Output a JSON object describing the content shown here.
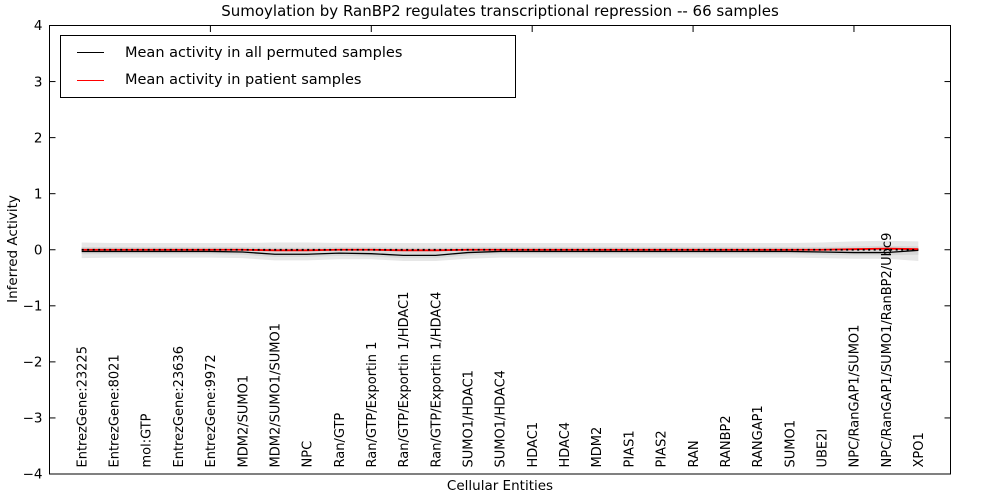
{
  "title": "Sumoylation by RanBP2 regulates transcriptional repression -- 66 samples",
  "legend": {
    "items": [
      {
        "label": "Mean activity in all permuted samples",
        "color": "#000000"
      },
      {
        "label": "Mean activity in patient samples",
        "color": "#ff0000"
      }
    ]
  },
  "chart_data": {
    "type": "line",
    "title": "Sumoylation by RanBP2 regulates transcriptional repression -- 66 samples",
    "xlabel": "Cellular Entities",
    "ylabel": "Inferred Activity",
    "ylim": [
      -4,
      4
    ],
    "xlim": [
      0,
      28
    ],
    "yticks": [
      -4,
      -3,
      -2,
      -1,
      0,
      1,
      2,
      3,
      4
    ],
    "xticks_top": [
      5,
      10,
      15,
      20,
      25
    ],
    "grid": false,
    "legend_position": "upper left",
    "categories": [
      "EntrezGene:23225",
      "EntrezGene:8021",
      "mol:GTP",
      "EntrezGene:23636",
      "EntrezGene:9972",
      "MDM2/SUMO1",
      "MDM2/SUMO1/SUMO1",
      "NPC",
      "Ran/GTP",
      "Ran/GTP/Exportin 1",
      "Ran/GTP/Exportin 1/HDAC1",
      "Ran/GTP/Exportin 1/HDAC4",
      "SUMO1/HDAC1",
      "SUMO1/HDAC4",
      "HDAC1",
      "HDAC4",
      "MDM2",
      "PIAS1",
      "PIAS2",
      "RAN",
      "RANBP2",
      "RANGAP1",
      "SUMO1",
      "UBE2I",
      "NPC/RanGAP1/SUMO1",
      "NPC/RanGAP1/SUMO1/RanBP2/Ubc9",
      "XPO1"
    ],
    "series": [
      {
        "name": "Mean activity in all permuted samples",
        "color": "#000000",
        "style": "solid",
        "width": 1.3,
        "values": [
          -0.03,
          -0.03,
          -0.03,
          -0.03,
          -0.03,
          -0.04,
          -0.08,
          -0.08,
          -0.06,
          -0.07,
          -0.1,
          -0.1,
          -0.05,
          -0.03,
          -0.03,
          -0.03,
          -0.03,
          -0.03,
          -0.03,
          -0.03,
          -0.03,
          -0.03,
          -0.03,
          -0.04,
          -0.05,
          -0.05,
          -0.01
        ]
      },
      {
        "name": "Mean activity in patient samples",
        "color": "#ff0000",
        "style": "solid",
        "width": 1.8,
        "values": [
          0,
          0,
          0,
          0,
          0,
          0,
          -0.01,
          -0.01,
          0,
          0,
          -0.01,
          -0.01,
          0,
          0,
          0,
          0,
          0,
          0,
          0,
          0,
          0,
          0,
          0,
          0,
          0.01,
          0.02,
          0.01
        ]
      },
      {
        "name": "zero-reference",
        "color": "#000000",
        "style": "dotted",
        "width": 1.8,
        "values": [
          0,
          0,
          0,
          0,
          0,
          0,
          0,
          0,
          0,
          0,
          0,
          0,
          0,
          0,
          0,
          0,
          0,
          0,
          0,
          0,
          0,
          0,
          0,
          0,
          0,
          0,
          0
        ]
      }
    ],
    "bands": [
      {
        "name": "permutation-range-outer",
        "color": "#e7e7e7",
        "upper": [
          0.13,
          0.12,
          0.12,
          0.12,
          0.12,
          0.12,
          0.13,
          0.13,
          0.12,
          0.12,
          0.12,
          0.12,
          0.12,
          0.12,
          0.12,
          0.12,
          0.12,
          0.12,
          0.12,
          0.12,
          0.12,
          0.12,
          0.12,
          0.13,
          0.15,
          0.16,
          0.15
        ],
        "lower": [
          -0.15,
          -0.14,
          -0.14,
          -0.14,
          -0.14,
          -0.15,
          -0.19,
          -0.19,
          -0.17,
          -0.17,
          -0.2,
          -0.2,
          -0.16,
          -0.14,
          -0.14,
          -0.14,
          -0.14,
          -0.14,
          -0.14,
          -0.14,
          -0.14,
          -0.14,
          -0.14,
          -0.15,
          -0.16,
          -0.16,
          -0.2
        ]
      },
      {
        "name": "permutation-range-inner",
        "color": "#d7d7d7",
        "upper": [
          0.05,
          0.05,
          0.05,
          0.05,
          0.05,
          0.05,
          0.04,
          0.04,
          0.05,
          0.05,
          0.04,
          0.04,
          0.05,
          0.05,
          0.05,
          0.05,
          0.05,
          0.05,
          0.05,
          0.05,
          0.05,
          0.05,
          0.05,
          0.05,
          0.06,
          0.07,
          0.06
        ],
        "lower": [
          -0.08,
          -0.08,
          -0.08,
          -0.08,
          -0.08,
          -0.09,
          -0.13,
          -0.13,
          -0.11,
          -0.12,
          -0.15,
          -0.15,
          -0.1,
          -0.08,
          -0.08,
          -0.08,
          -0.08,
          -0.08,
          -0.08,
          -0.08,
          -0.08,
          -0.08,
          -0.08,
          -0.09,
          -0.1,
          -0.1,
          -0.09
        ]
      }
    ]
  }
}
